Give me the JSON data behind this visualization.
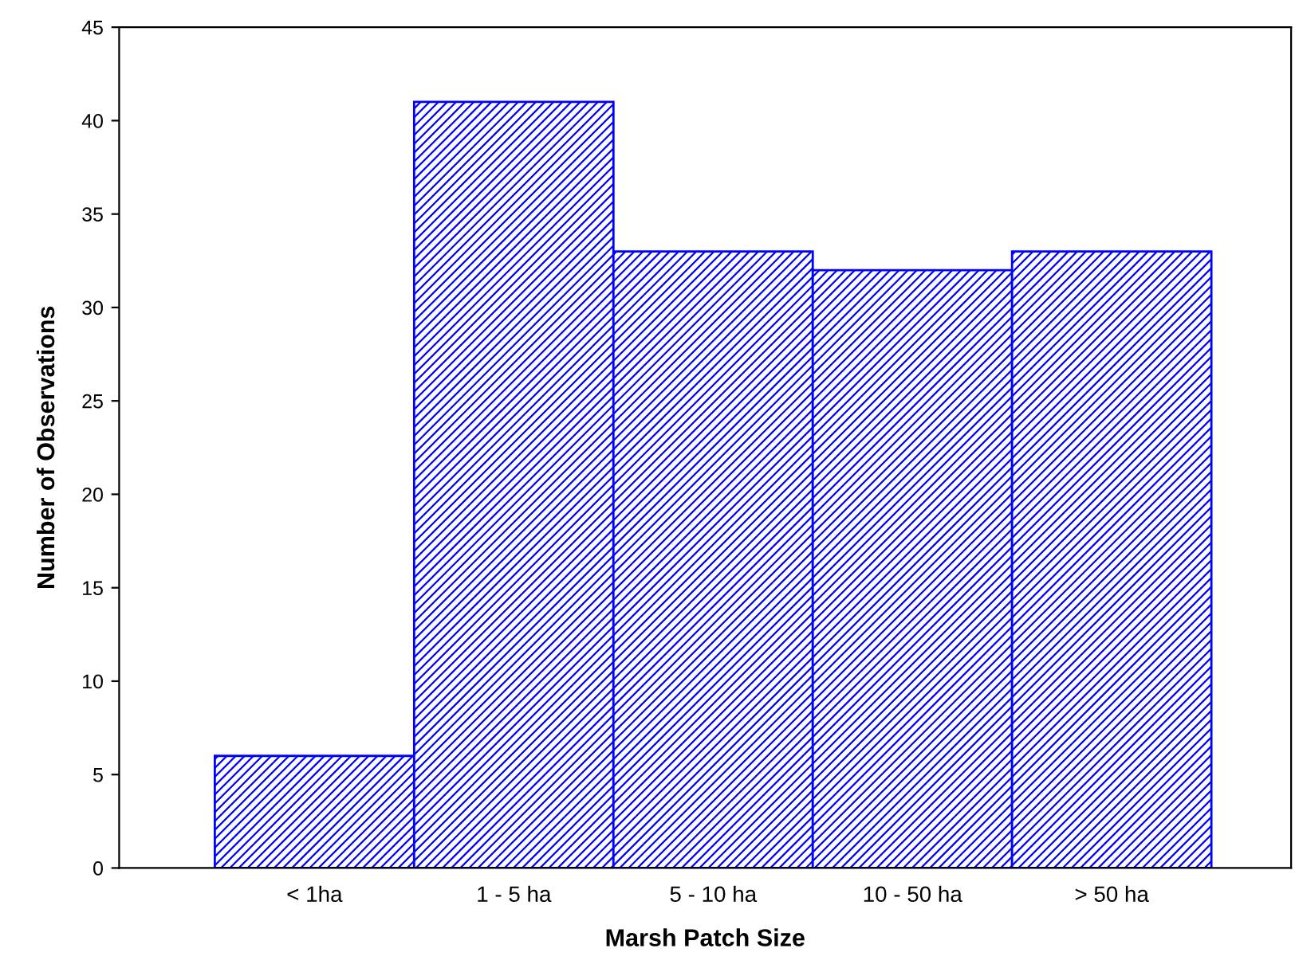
{
  "chart_data": {
    "type": "bar",
    "xlabel": "Marsh Patch Size",
    "ylabel": "Number of Observations",
    "categories": [
      "< 1ha",
      "1 - 5 ha",
      "5 - 10 ha",
      "10 - 50 ha",
      "> 50 ha"
    ],
    "values": [
      6,
      41,
      33,
      32,
      33
    ],
    "color": "#0000ff",
    "ylim": [
      0,
      45
    ],
    "yticks": [
      0,
      5,
      10,
      15,
      20,
      25,
      30,
      35,
      40,
      45
    ],
    "grid": false
  }
}
